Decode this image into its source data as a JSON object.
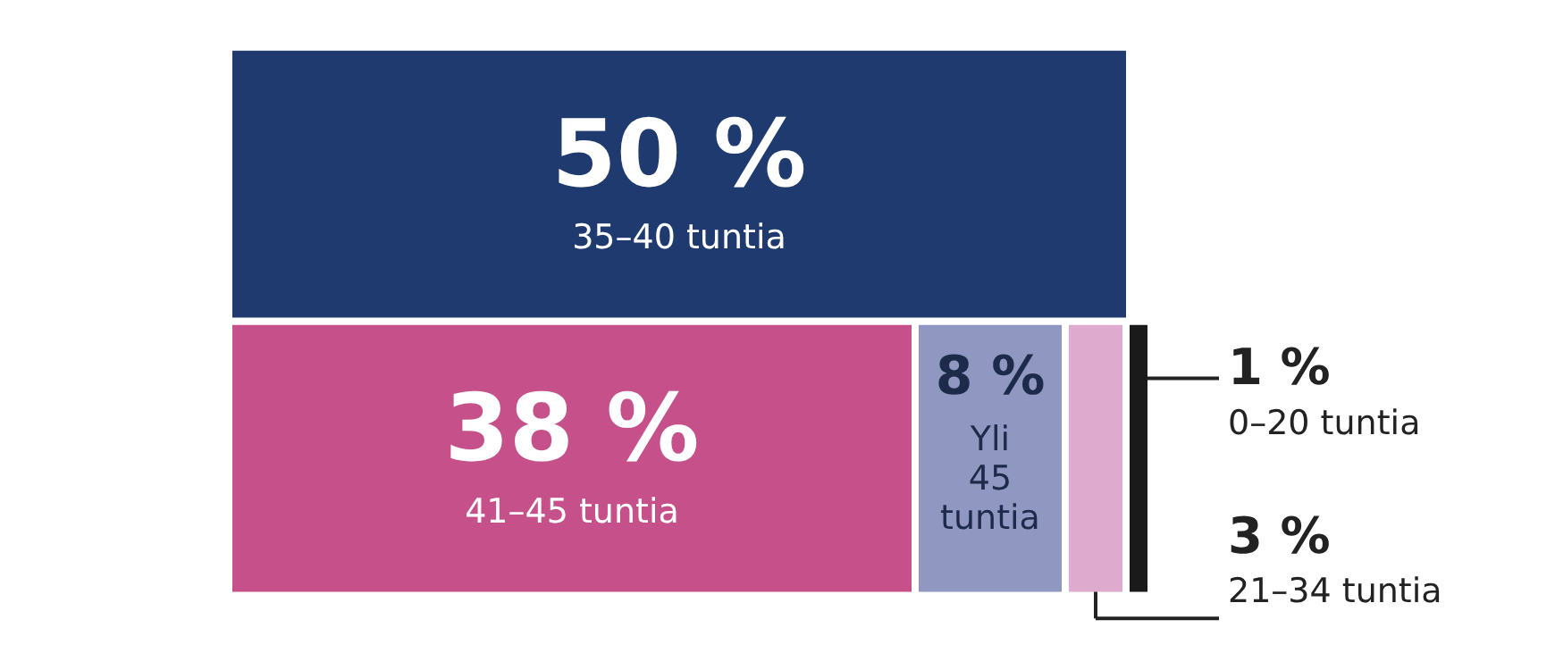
{
  "chart_data": {
    "type": "other",
    "categories": [
      "35–40 tuntia",
      "41–45 tuntia",
      "Yli 45 tuntia",
      "21–34 tuntia",
      "0–20 tuntia"
    ],
    "values": [
      50,
      38,
      8,
      3,
      1
    ],
    "value_labels": [
      "50 %",
      "38 %",
      "8 %",
      "3 %",
      "1 %"
    ],
    "colors": [
      "#1f3a6e",
      "#c5508a",
      "#9098c2",
      "#deaacd",
      "#1a1a1a"
    ]
  }
}
